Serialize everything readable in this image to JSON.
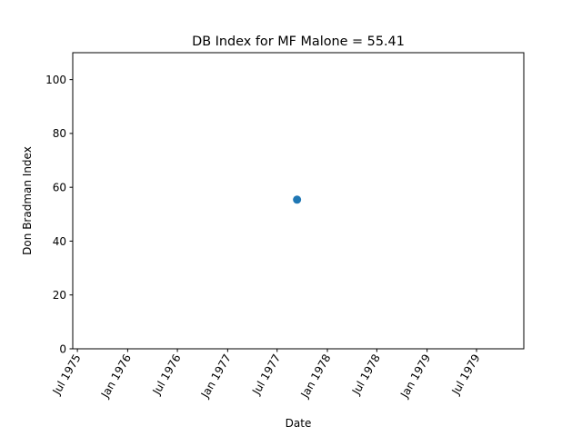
{
  "chart_data": {
    "type": "scatter",
    "title": "DB Index for MF Malone = 55.41",
    "xlabel": "Date",
    "ylabel": "Don Bradman Index",
    "xlim": [
      "1975-06-14",
      "1979-12-21"
    ],
    "ylim": [
      0,
      110
    ],
    "x_ticks": [
      {
        "date": "1975-07-01",
        "label": "Jul 1975"
      },
      {
        "date": "1976-01-01",
        "label": "Jan 1976"
      },
      {
        "date": "1976-07-01",
        "label": "Jul 1976"
      },
      {
        "date": "1977-01-01",
        "label": "Jan 1977"
      },
      {
        "date": "1977-07-01",
        "label": "Jul 1977"
      },
      {
        "date": "1978-01-01",
        "label": "Jan 1978"
      },
      {
        "date": "1978-07-01",
        "label": "Jul 1978"
      },
      {
        "date": "1979-01-01",
        "label": "Jan 1979"
      },
      {
        "date": "1979-07-01",
        "label": "Jul 1979"
      }
    ],
    "y_ticks": [
      0,
      20,
      40,
      60,
      80,
      100
    ],
    "points": [
      {
        "x": "1977-09-12",
        "y": 55.41
      }
    ],
    "marker_color": "#1f77b4",
    "grid": false,
    "legend": false
  }
}
